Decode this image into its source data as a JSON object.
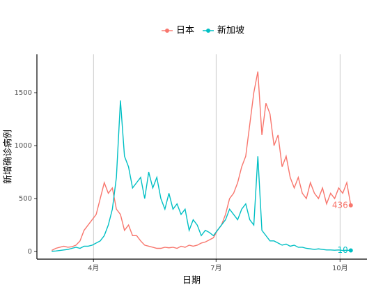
{
  "chart_data": {
    "type": "line",
    "xlabel": "日期",
    "ylabel": "新增确诊病例",
    "x": [
      60,
      63,
      66,
      69,
      72,
      75,
      78,
      81,
      84,
      87,
      90,
      93,
      96,
      99,
      102,
      105,
      108,
      111,
      114,
      117,
      120,
      123,
      126,
      129,
      132,
      135,
      138,
      141,
      144,
      147,
      150,
      153,
      156,
      159,
      162,
      165,
      168,
      171,
      174,
      177,
      180,
      183,
      186,
      189,
      192,
      195,
      198,
      201,
      204,
      207,
      210,
      213,
      216,
      219,
      222,
      225,
      228,
      231,
      234,
      237,
      240,
      243,
      246,
      249,
      252,
      255,
      258,
      261,
      264,
      267,
      270,
      273,
      276,
      279,
      282
    ],
    "series": [
      {
        "name": "日本",
        "color": "#F8766D",
        "values": [
          10,
          30,
          40,
          50,
          40,
          45,
          60,
          100,
          200,
          250,
          300,
          350,
          500,
          650,
          550,
          600,
          400,
          350,
          200,
          250,
          150,
          150,
          100,
          60,
          50,
          40,
          30,
          30,
          40,
          35,
          40,
          30,
          50,
          40,
          60,
          50,
          60,
          80,
          90,
          110,
          130,
          200,
          250,
          350,
          500,
          550,
          650,
          800,
          900,
          1200,
          1500,
          1700,
          1100,
          1400,
          1300,
          1000,
          1100,
          800,
          900,
          700,
          600,
          700,
          550,
          500,
          650,
          550,
          500,
          600,
          450,
          550,
          500,
          600,
          550,
          650,
          436
        ]
      },
      {
        "name": "新加坡",
        "color": "#00BFC4",
        "values": [
          2,
          5,
          10,
          15,
          20,
          30,
          40,
          30,
          50,
          50,
          60,
          80,
          100,
          150,
          250,
          400,
          700,
          1426,
          900,
          800,
          600,
          650,
          700,
          500,
          750,
          600,
          700,
          500,
          400,
          550,
          400,
          450,
          350,
          400,
          200,
          300,
          250,
          150,
          200,
          180,
          150,
          200,
          250,
          300,
          400,
          350,
          300,
          400,
          450,
          300,
          250,
          900,
          200,
          150,
          100,
          100,
          80,
          60,
          70,
          50,
          60,
          40,
          40,
          30,
          25,
          20,
          25,
          20,
          15,
          15,
          12,
          15,
          10,
          12,
          10
        ]
      }
    ],
    "xlim": [
      49,
      294
    ],
    "xticks": [
      {
        "value": 91,
        "label": "4月"
      },
      {
        "value": 182,
        "label": "7月"
      },
      {
        "value": 274,
        "label": "10月"
      }
    ],
    "ylim": [
      -72,
      1862
    ],
    "yticks": [
      0,
      500,
      1000,
      1500
    ],
    "grid": true,
    "legend": "top"
  }
}
